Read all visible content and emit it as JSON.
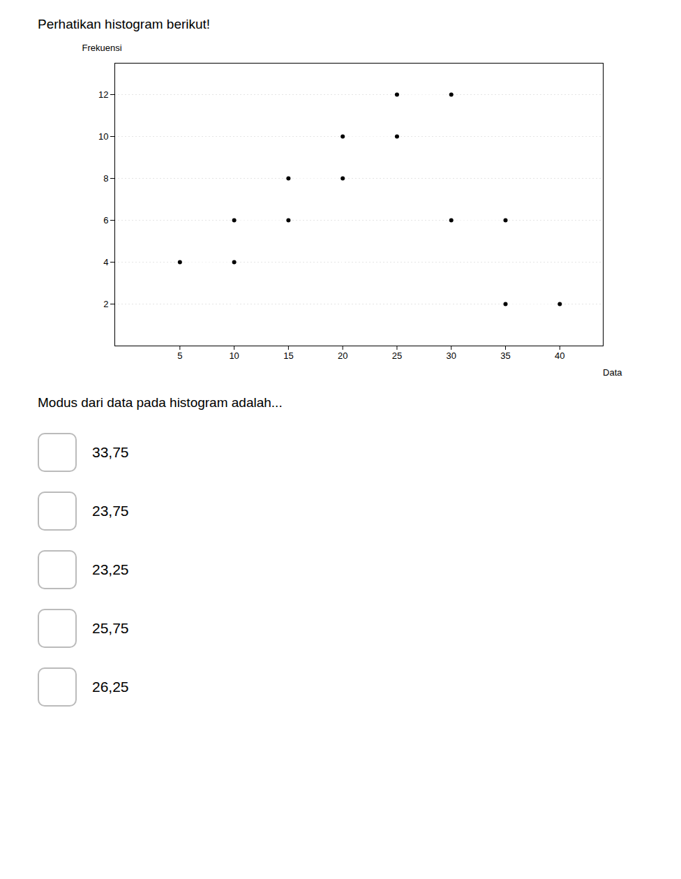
{
  "chart_data": {
    "type": "histogram",
    "title": "Perhatikan histogram berikut!",
    "xlabel": "Data",
    "ylabel": "Frekuensi",
    "bins": [
      5,
      10,
      15,
      20,
      25,
      30,
      35,
      40
    ],
    "values": [
      4,
      6,
      8,
      10,
      12,
      6,
      2
    ],
    "xlim": [
      -1,
      44
    ],
    "xticks": [
      5,
      10,
      15,
      20,
      25,
      30,
      35,
      40
    ],
    "ylim": [
      0,
      13.5
    ],
    "yticks": [
      2,
      4,
      6,
      8,
      10,
      12
    ],
    "grid": true,
    "marker": "circle",
    "annotations": [
      "Modus dari data pada histogram adalah...",
      "33,75",
      "23,75",
      "23,25",
      "25,75",
      "26,25"
    ]
  }
}
